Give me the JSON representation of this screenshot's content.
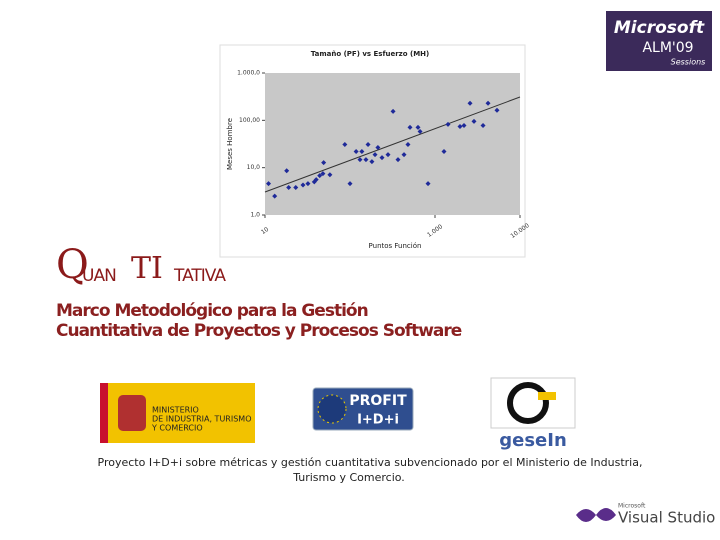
{
  "slide": {
    "logo_q": "Q",
    "logo_uan": "UAN",
    "logo_ti": "TI",
    "logo_tativa": "TATIVA",
    "subtitle_lines": [
      "Marco Metodológico para la Gestión",
      "Cuantitativa de Proyectos y Procesos Software"
    ],
    "badge": {
      "brand": "Microsoft",
      "event": "ALM'09",
      "sub": "Sessions"
    },
    "ministry": [
      "MINISTERIO",
      "DE INDUSTRIA, TURISMO",
      "Y COMERCIO"
    ],
    "profit": {
      "name": "PROFIT",
      "program": "I+D+i"
    },
    "gesein": "geseIn",
    "footer_lines": [
      "Proyecto I+D+i sobre métricas y gestión cuantitativa subvencionado por el Ministerio de Industria,",
      "Turismo y Comercio."
    ],
    "vs": {
      "brand": "Microsoft",
      "product": "Visual Studio"
    }
  },
  "chart_data": {
    "type": "scatter",
    "title": "Tamaño (PF) vs Esfuerzo (MH)",
    "x_label": "Puntos Función",
    "y_label": "Meses Hombre",
    "x_scale": "log",
    "y_scale": "log",
    "color": "#1f2a99",
    "xlim": [
      10,
      10000
    ],
    "ylim": [
      1,
      1000
    ],
    "xticks": [
      10,
      {
        "value": 1000,
        "label": "1.000"
      },
      {
        "value": 10000,
        "label": "10.000"
      }
    ],
    "yticks": [
      {
        "value": 1,
        "label": "1,0"
      },
      {
        "value": 10,
        "label": "10,0"
      },
      {
        "value": 100,
        "label": "100,00"
      },
      {
        "value": 1000,
        "label": "1.000,0"
      }
    ],
    "x": [
      11,
      13,
      18,
      19,
      23,
      28,
      32,
      38,
      40,
      44,
      49,
      48,
      58,
      87,
      100,
      118,
      131,
      138,
      154,
      163,
      181,
      197,
      213,
      238,
      280,
      321,
      367,
      432,
      481,
      508,
      631,
      667,
      828,
      1276,
      1422,
      1968,
      2193,
      2582,
      2877,
      3673,
      4207,
      5361
    ],
    "y": [
      4.6,
      2.5,
      8.6,
      3.8,
      3.8,
      4.3,
      4.6,
      5.0,
      5.6,
      6.8,
      12.8,
      7.5,
      7.1,
      30.8,
      4.6,
      21.9,
      14.8,
      21.9,
      14.8,
      30.8,
      13.4,
      18.9,
      26.6,
      16.3,
      18.9,
      155,
      14.8,
      18.9,
      30.8,
      71,
      71,
      58,
      4.6,
      21.9,
      82,
      74,
      78,
      230,
      95,
      78,
      230,
      163
    ]
  }
}
